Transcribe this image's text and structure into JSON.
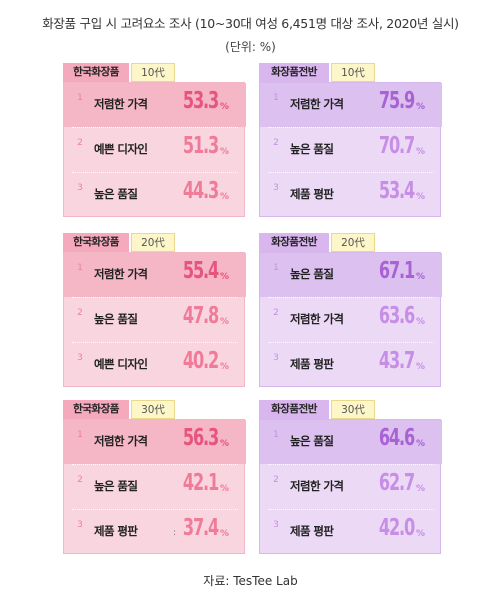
{
  "header": {
    "title": "화장품 구입 시 고려요소 조사 (10~30대 여성 6,451명 대상 조사, 2020년 실시)",
    "unit": "(단위: %)"
  },
  "footer": {
    "source": "자료: TesTee Lab"
  },
  "colors": {
    "korean_cosmetics": "#f9d5df",
    "korean_cosmetics_accent": "#e6557c",
    "overall_cosmetics": "#ecd9f6",
    "overall_cosmetics_accent": "#a962d4",
    "age_tag": "#fdf6c8"
  },
  "chart_data": [
    {
      "type": "table",
      "category": "한국화장품",
      "age": "10代",
      "items": [
        {
          "rank": "1",
          "label": "저렴한 가격",
          "value": "53.3"
        },
        {
          "rank": "2",
          "label": "예쁜 디자인",
          "value": "51.3"
        },
        {
          "rank": "3",
          "label": "높은 품질",
          "value": "44.3"
        }
      ],
      "percent_sign": "%"
    },
    {
      "type": "table",
      "category": "화장품전반",
      "age": "10代",
      "items": [
        {
          "rank": "1",
          "label": "저렴한 가격",
          "value": "75.9"
        },
        {
          "rank": "2",
          "label": "높은 품질",
          "value": "70.7"
        },
        {
          "rank": "3",
          "label": "제품 평판",
          "value": "53.4"
        }
      ],
      "percent_sign": "%"
    },
    {
      "type": "table",
      "category": "한국화장품",
      "age": "20代",
      "items": [
        {
          "rank": "1",
          "label": "저렴한 가격",
          "value": "55.4"
        },
        {
          "rank": "2",
          "label": "높은 품질",
          "value": "47.8"
        },
        {
          "rank": "3",
          "label": "예쁜 디자인",
          "value": "40.2"
        }
      ],
      "percent_sign": "%"
    },
    {
      "type": "table",
      "category": "화장품전반",
      "age": "20代",
      "items": [
        {
          "rank": "1",
          "label": "높은 품질",
          "value": "67.1"
        },
        {
          "rank": "2",
          "label": "저렴한 가격",
          "value": "63.6"
        },
        {
          "rank": "3",
          "label": "제품 평판",
          "value": "43.7"
        }
      ],
      "percent_sign": "%"
    },
    {
      "type": "table",
      "category": "한국화장품",
      "age": "30代",
      "items": [
        {
          "rank": "1",
          "label": "저렴한 가격",
          "value": "56.3"
        },
        {
          "rank": "2",
          "label": "높은 품질",
          "value": "42.1"
        },
        {
          "rank": "3",
          "label": "제품 평판",
          "value": "37.4",
          "bullet": ":"
        }
      ],
      "percent_sign": "%"
    },
    {
      "type": "table",
      "category": "화장품전반",
      "age": "30代",
      "items": [
        {
          "rank": "1",
          "label": "높은 품질",
          "value": "64.6"
        },
        {
          "rank": "2",
          "label": "저렴한 가격",
          "value": "62.7"
        },
        {
          "rank": "3",
          "label": "제품 평판",
          "value": "42.0"
        }
      ],
      "percent_sign": "%"
    }
  ]
}
